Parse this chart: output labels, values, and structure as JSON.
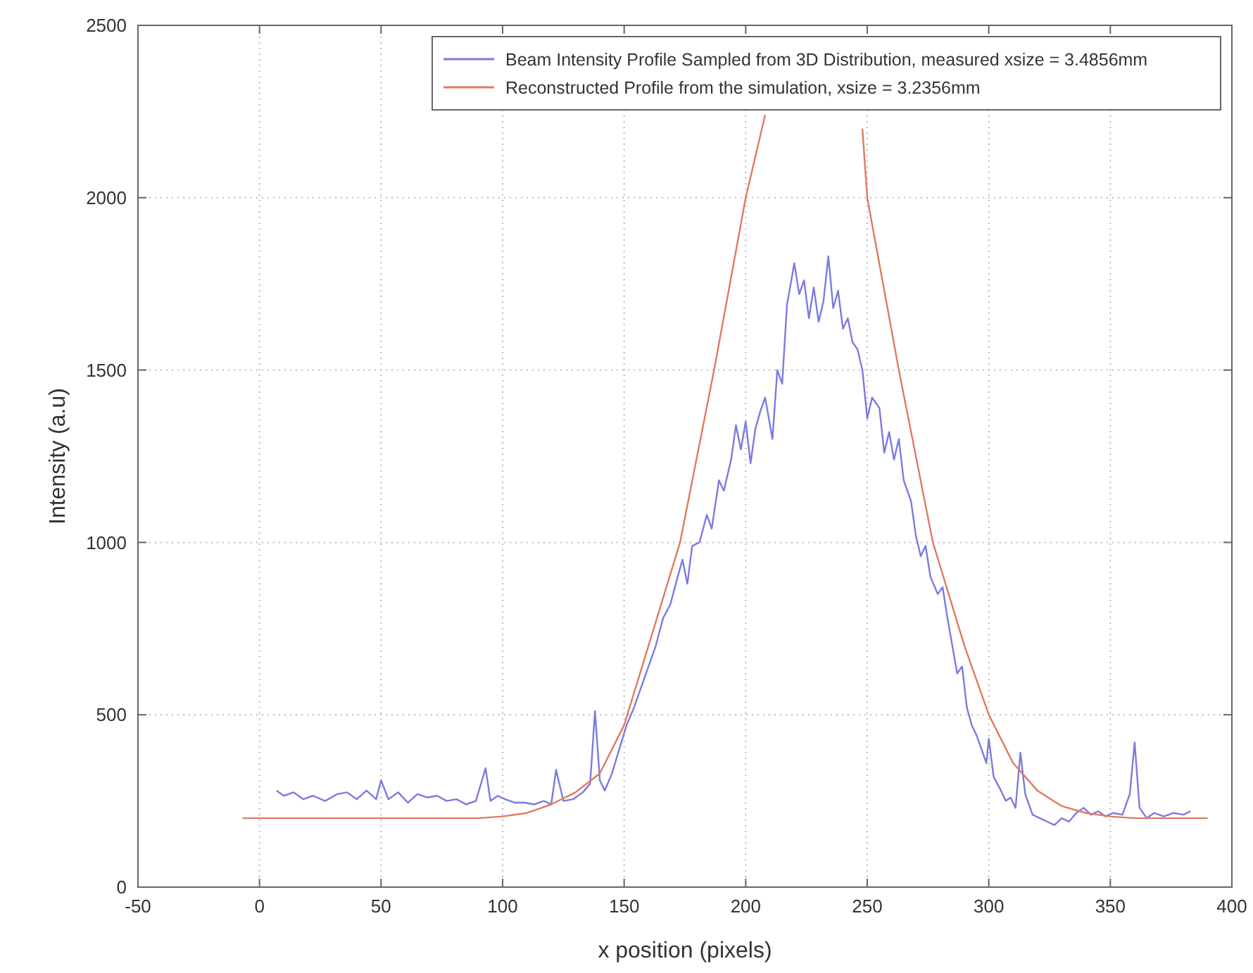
{
  "chart_data": {
    "type": "line",
    "xlabel": "x position (pixels)",
    "ylabel": "Intensity (a.u)",
    "xlim": [
      -50,
      400
    ],
    "ylim": [
      0,
      2500
    ],
    "xticks": [
      -50,
      0,
      50,
      100,
      150,
      200,
      250,
      300,
      350,
      400
    ],
    "yticks": [
      0,
      500,
      1000,
      1500,
      2000,
      2500
    ],
    "grid": true,
    "legend": "top right",
    "line_style": "solid",
    "series": [
      {
        "name": "Beam Intensity Profile Sampled from 3D Distribution, measured xsize = 3.4856mm",
        "color": "#7b7be0",
        "x": [
          7,
          10,
          14,
          18,
          22,
          27,
          32,
          36,
          40,
          44,
          48,
          50,
          53,
          57,
          61,
          65,
          69,
          73,
          77,
          81,
          85,
          89,
          93,
          95,
          98,
          101,
          105,
          109,
          113,
          117,
          120,
          122,
          125,
          129,
          133,
          136,
          138,
          140,
          142,
          145,
          148,
          151,
          154,
          157,
          160,
          163,
          166,
          169,
          172,
          174,
          176,
          178,
          181,
          184,
          186,
          189,
          191,
          194,
          196,
          198,
          200,
          202,
          204,
          206,
          208,
          211,
          213,
          215,
          217,
          220,
          222,
          224,
          226,
          228,
          230,
          232,
          234,
          236,
          238,
          240,
          242,
          244,
          246,
          248,
          250,
          252,
          255,
          257,
          259,
          261,
          263,
          265,
          268,
          270,
          272,
          274,
          276,
          279,
          281,
          283,
          285,
          287,
          289,
          291,
          293,
          295,
          297,
          299,
          300,
          302,
          305,
          307,
          309,
          311,
          313,
          315,
          318,
          321,
          324,
          327,
          330,
          333,
          336,
          339,
          342,
          345,
          348,
          351,
          355,
          358,
          360,
          362,
          365,
          368,
          372,
          376,
          380,
          383
        ],
        "values": [
          280,
          265,
          275,
          255,
          265,
          250,
          270,
          275,
          255,
          280,
          255,
          310,
          255,
          275,
          245,
          270,
          260,
          265,
          250,
          255,
          240,
          250,
          345,
          250,
          265,
          255,
          245,
          245,
          240,
          250,
          240,
          340,
          250,
          255,
          275,
          300,
          510,
          310,
          280,
          330,
          400,
          470,
          520,
          580,
          640,
          700,
          780,
          820,
          900,
          950,
          880,
          990,
          1000,
          1080,
          1040,
          1180,
          1150,
          1240,
          1340,
          1270,
          1350,
          1230,
          1330,
          1380,
          1420,
          1300,
          1500,
          1460,
          1690,
          1810,
          1720,
          1760,
          1650,
          1740,
          1640,
          1700,
          1830,
          1680,
          1730,
          1620,
          1650,
          1580,
          1560,
          1500,
          1360,
          1420,
          1390,
          1260,
          1320,
          1240,
          1300,
          1180,
          1120,
          1020,
          960,
          990,
          900,
          850,
          870,
          780,
          700,
          620,
          640,
          520,
          470,
          440,
          400,
          360,
          430,
          320,
          280,
          250,
          260,
          230,
          390,
          270,
          210,
          200,
          190,
          180,
          200,
          190,
          215,
          230,
          210,
          220,
          205,
          215,
          210,
          270,
          420,
          230,
          200,
          215,
          205,
          215,
          210,
          220
        ]
      },
      {
        "name": "Reconstructed Profile from the simulation, xsize = 3.2356mm",
        "color": "#e07a5f",
        "x": [
          -7,
          90,
          100,
          110,
          120,
          130,
          140,
          150,
          160,
          173,
          187,
          200,
          208,
          228,
          248,
          250,
          263,
          277,
          290,
          300,
          310,
          320,
          330,
          340,
          350,
          360,
          390
        ],
        "values": [
          200,
          200,
          205,
          215,
          240,
          275,
          330,
          470,
          700,
          1000,
          1500,
          2000,
          2240,
          null,
          2200,
          2000,
          1500,
          1000,
          700,
          500,
          360,
          280,
          235,
          215,
          205,
          200,
          200
        ]
      }
    ]
  }
}
